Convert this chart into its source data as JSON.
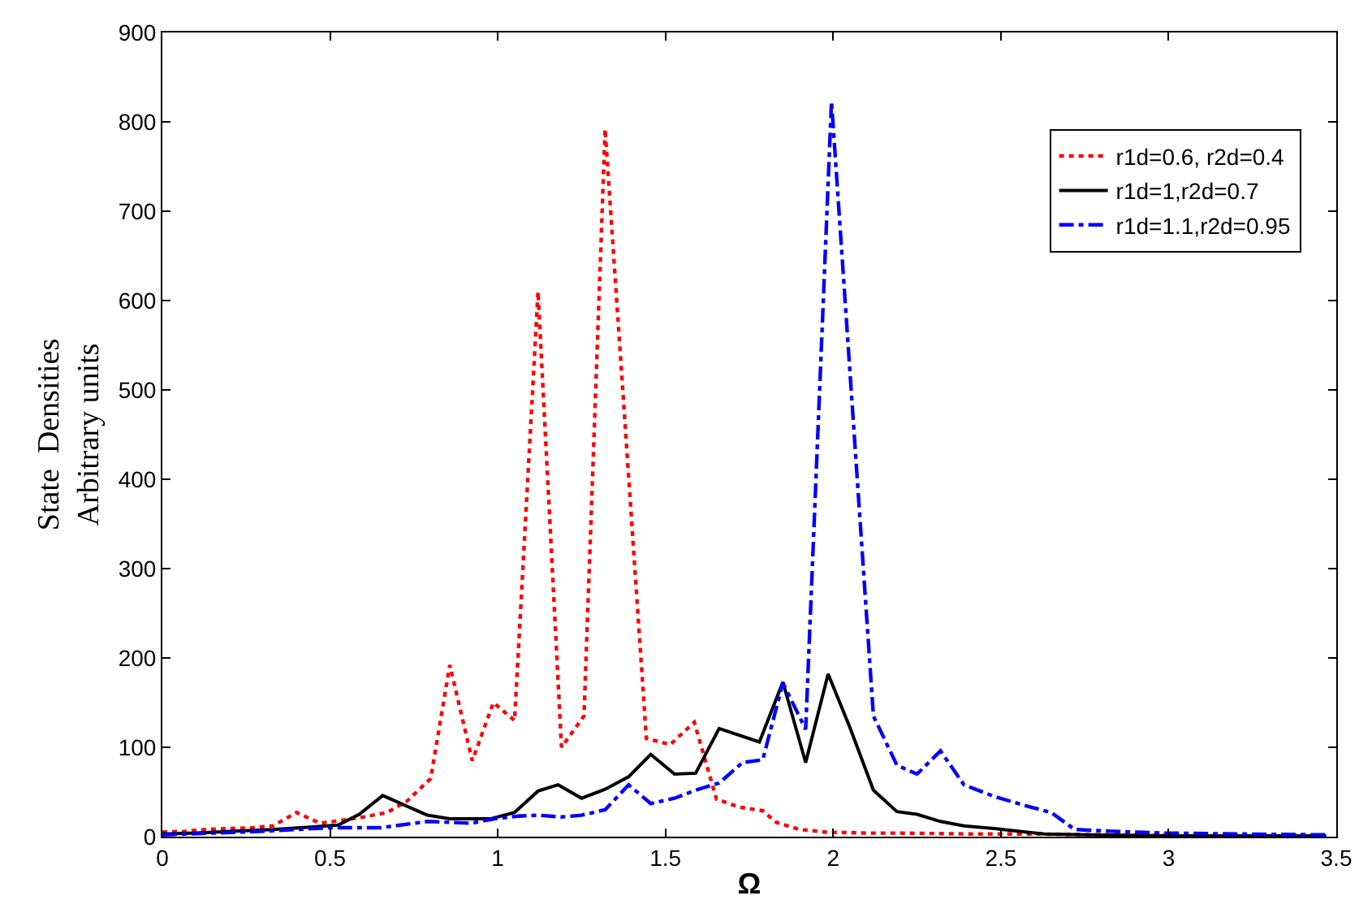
{
  "chart_data": {
    "type": "line",
    "xlabel": "Ω",
    "ylabel": "State  Densities\nArbitrary units",
    "xlim": [
      0,
      3.5
    ],
    "xticks": [
      0,
      0.5,
      1,
      1.5,
      2,
      2.5,
      3,
      3.5
    ],
    "ylim": [
      0,
      900
    ],
    "yticks": [
      0,
      100,
      200,
      300,
      400,
      500,
      600,
      700,
      800,
      900
    ],
    "legend": "top right",
    "marker": "none",
    "series": [
      {
        "name": "r1d=0.6, r2d=0.4",
        "color": "#ff0000",
        "line_style": "dotted",
        "x": [
          0,
          0.07,
          0.13,
          0.2,
          0.27,
          0.33,
          0.4,
          0.47,
          0.53,
          0.6,
          0.67,
          0.73,
          0.8,
          0.857,
          0.924,
          0.987,
          1.05,
          1.12,
          1.19,
          1.257,
          1.32,
          1.443,
          1.514,
          1.586,
          1.652,
          1.72,
          1.79,
          1.83,
          1.9,
          1.98,
          2.1,
          2.2,
          2.4,
          2.6,
          2.8,
          3.0
        ],
        "values": [
          5,
          6,
          8,
          9,
          10,
          12,
          27,
          15,
          18,
          22,
          27,
          40,
          65,
          192,
          85,
          150,
          130,
          610,
          100,
          135,
          792,
          110,
          103,
          128,
          42,
          33,
          29,
          16,
          8,
          5,
          4,
          4,
          3,
          3,
          2,
          2
        ]
      },
      {
        "name": "r1d=1,r2d=0.7",
        "color": "#000000",
        "line_style": "solid",
        "x": [
          0,
          0.1,
          0.2,
          0.33,
          0.45,
          0.524,
          0.587,
          0.657,
          0.79,
          0.857,
          0.98,
          1.05,
          1.12,
          1.18,
          1.25,
          1.32,
          1.39,
          1.456,
          1.527,
          1.59,
          1.66,
          1.78,
          1.85,
          1.918,
          1.985,
          2.05,
          2.12,
          2.19,
          2.25,
          2.32,
          2.39,
          2.48,
          2.63,
          2.76,
          3.0,
          3.47
        ],
        "values": [
          3,
          4,
          6,
          8,
          11,
          13,
          25,
          46,
          24,
          20,
          20,
          27,
          51,
          58,
          43,
          53,
          67,
          92,
          70,
          71,
          121,
          106,
          173,
          83,
          182,
          122,
          52,
          28,
          25,
          17,
          12,
          9,
          3,
          2,
          1,
          1
        ]
      },
      {
        "name": "r1d=1.1,r2d=0.95",
        "color": "#0000ff",
        "line_style": "dashdot",
        "x": [
          0,
          0.15,
          0.3,
          0.5,
          0.651,
          0.79,
          0.92,
          0.99,
          1.06,
          1.12,
          1.19,
          1.25,
          1.32,
          1.39,
          1.456,
          1.527,
          1.59,
          1.66,
          1.73,
          1.79,
          1.85,
          1.918,
          1.995,
          2.12,
          2.19,
          2.25,
          2.32,
          2.39,
          2.48,
          2.57,
          2.65,
          2.72,
          2.83,
          2.99,
          3.2,
          3.47
        ],
        "values": [
          2,
          4,
          6,
          10,
          10,
          17,
          15,
          20,
          23,
          24,
          22,
          24,
          30,
          58,
          37,
          43,
          52,
          60,
          83,
          86,
          172,
          120,
          823,
          135,
          80,
          70,
          96,
          58,
          45,
          35,
          27,
          8,
          6,
          4,
          3,
          2
        ]
      }
    ]
  }
}
